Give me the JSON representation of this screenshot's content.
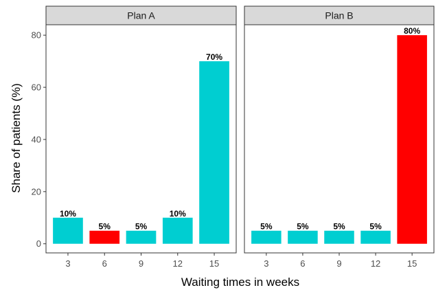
{
  "chart_data": {
    "type": "bar",
    "facet_type": "faceted",
    "xlabel": "Waiting times in weeks",
    "ylabel": "Share of patients (%)",
    "ylim": [
      -3.5,
      84
    ],
    "yticks": [
      0,
      20,
      40,
      60,
      80
    ],
    "categories": [
      "3",
      "6",
      "9",
      "12",
      "15"
    ],
    "colors": {
      "default": "#00CED1",
      "highlight": "#FF0000"
    },
    "panels": [
      {
        "strip": "Plan A",
        "values": [
          10,
          5,
          5,
          10,
          70
        ],
        "labels": [
          "10%",
          "5%",
          "5%",
          "10%",
          "70%"
        ],
        "highlight": [
          false,
          true,
          false,
          false,
          false
        ]
      },
      {
        "strip": "Plan B",
        "values": [
          5,
          5,
          5,
          5,
          80
        ],
        "labels": [
          "5%",
          "5%",
          "5%",
          "5%",
          "80%"
        ],
        "highlight": [
          false,
          false,
          false,
          false,
          true
        ]
      }
    ]
  }
}
